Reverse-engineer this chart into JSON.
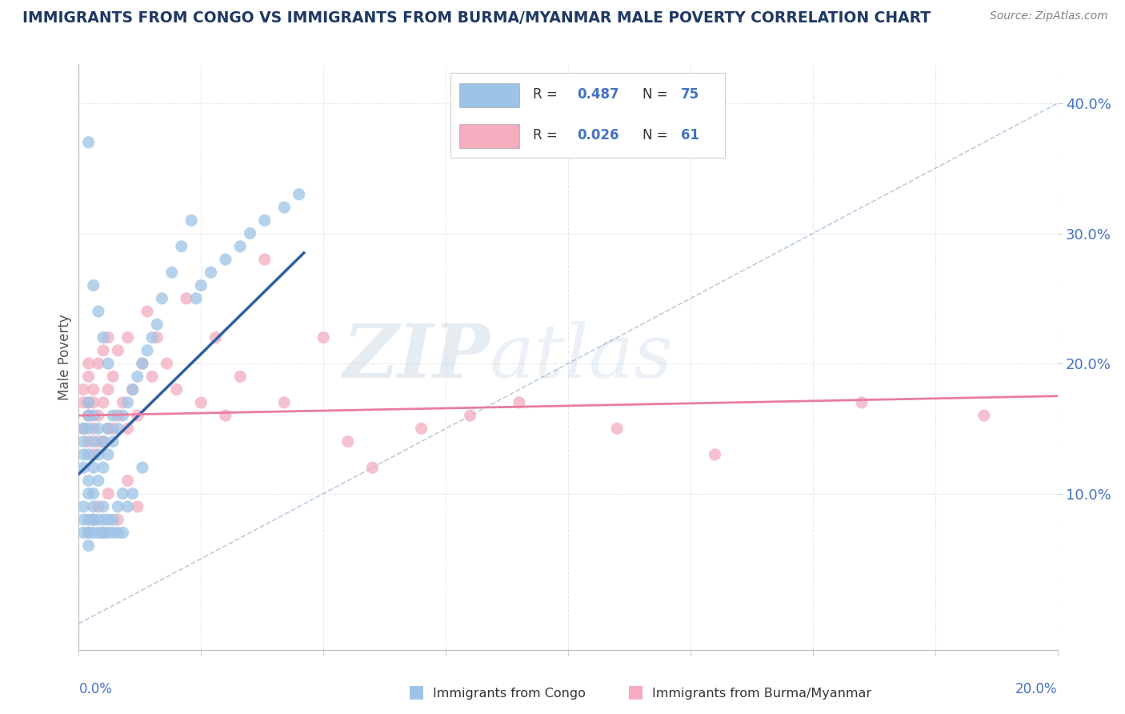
{
  "title": "IMMIGRANTS FROM CONGO VS IMMIGRANTS FROM BURMA/MYANMAR MALE POVERTY CORRELATION CHART",
  "source": "Source: ZipAtlas.com",
  "ylabel": "Male Poverty",
  "xlim": [
    0.0,
    0.2
  ],
  "ylim": [
    -0.02,
    0.43
  ],
  "color_congo": "#9DC3E6",
  "color_burma": "#F4ACBE",
  "color_congo_line": "#2E5FA3",
  "color_burma_line": "#E87DA0",
  "color_diag": "#A0B8D0",
  "watermark_zip": "ZIP",
  "watermark_atlas": "atlas",
  "legend_label1": "Immigrants from Congo",
  "legend_label2": "Immigrants from Burma/Myanmar",
  "congo_x": [
    0.001,
    0.001,
    0.001,
    0.001,
    0.001,
    0.001,
    0.001,
    0.002,
    0.002,
    0.002,
    0.002,
    0.002,
    0.002,
    0.002,
    0.002,
    0.002,
    0.003,
    0.003,
    0.003,
    0.003,
    0.003,
    0.003,
    0.003,
    0.004,
    0.004,
    0.004,
    0.004,
    0.004,
    0.005,
    0.005,
    0.005,
    0.005,
    0.005,
    0.006,
    0.006,
    0.006,
    0.006,
    0.007,
    0.007,
    0.007,
    0.007,
    0.008,
    0.008,
    0.008,
    0.009,
    0.009,
    0.009,
    0.01,
    0.01,
    0.011,
    0.011,
    0.012,
    0.013,
    0.013,
    0.014,
    0.015,
    0.016,
    0.017,
    0.019,
    0.021,
    0.023,
    0.024,
    0.025,
    0.027,
    0.03,
    0.033,
    0.035,
    0.038,
    0.042,
    0.045,
    0.002,
    0.003,
    0.004,
    0.005,
    0.006
  ],
  "congo_y": [
    0.12,
    0.13,
    0.14,
    0.15,
    0.07,
    0.08,
    0.09,
    0.1,
    0.11,
    0.13,
    0.15,
    0.16,
    0.17,
    0.08,
    0.07,
    0.06,
    0.09,
    0.1,
    0.12,
    0.14,
    0.16,
    0.07,
    0.08,
    0.11,
    0.13,
    0.15,
    0.07,
    0.08,
    0.12,
    0.14,
    0.08,
    0.07,
    0.09,
    0.13,
    0.15,
    0.08,
    0.07,
    0.14,
    0.16,
    0.08,
    0.07,
    0.15,
    0.09,
    0.07,
    0.16,
    0.1,
    0.07,
    0.17,
    0.09,
    0.18,
    0.1,
    0.19,
    0.2,
    0.12,
    0.21,
    0.22,
    0.23,
    0.25,
    0.27,
    0.29,
    0.31,
    0.25,
    0.26,
    0.27,
    0.28,
    0.29,
    0.3,
    0.31,
    0.32,
    0.33,
    0.37,
    0.26,
    0.24,
    0.22,
    0.2
  ],
  "burma_x": [
    0.001,
    0.001,
    0.001,
    0.002,
    0.002,
    0.002,
    0.002,
    0.002,
    0.003,
    0.003,
    0.003,
    0.003,
    0.004,
    0.004,
    0.004,
    0.005,
    0.005,
    0.005,
    0.006,
    0.006,
    0.006,
    0.007,
    0.007,
    0.008,
    0.008,
    0.009,
    0.01,
    0.01,
    0.011,
    0.012,
    0.013,
    0.014,
    0.015,
    0.016,
    0.018,
    0.02,
    0.022,
    0.025,
    0.028,
    0.03,
    0.033,
    0.038,
    0.042,
    0.05,
    0.055,
    0.06,
    0.07,
    0.08,
    0.09,
    0.11,
    0.13,
    0.16,
    0.185,
    0.002,
    0.003,
    0.004,
    0.005,
    0.006,
    0.008,
    0.01,
    0.012
  ],
  "burma_y": [
    0.15,
    0.17,
    0.18,
    0.14,
    0.16,
    0.17,
    0.19,
    0.2,
    0.13,
    0.15,
    0.17,
    0.18,
    0.14,
    0.16,
    0.2,
    0.14,
    0.17,
    0.21,
    0.15,
    0.18,
    0.22,
    0.15,
    0.19,
    0.16,
    0.21,
    0.17,
    0.15,
    0.22,
    0.18,
    0.16,
    0.2,
    0.24,
    0.19,
    0.22,
    0.2,
    0.18,
    0.25,
    0.17,
    0.22,
    0.16,
    0.19,
    0.28,
    0.17,
    0.22,
    0.14,
    0.12,
    0.15,
    0.16,
    0.17,
    0.15,
    0.13,
    0.17,
    0.16,
    0.07,
    0.08,
    0.09,
    0.07,
    0.1,
    0.08,
    0.11,
    0.09
  ],
  "congo_line_x": [
    0.0,
    0.046
  ],
  "congo_line_y": [
    0.115,
    0.285
  ],
  "burma_line_x": [
    0.0,
    0.2
  ],
  "burma_line_y": [
    0.16,
    0.175
  ],
  "diag_line_x": [
    0.0,
    0.2
  ],
  "diag_line_y": [
    0.0,
    0.4
  ],
  "ytick_vals": [
    0.1,
    0.2,
    0.3,
    0.4
  ],
  "ytick_labels": [
    "10.0%",
    "20.0%",
    "30.0%",
    "40.0%"
  ],
  "xtick_vals": [
    0.0,
    0.025,
    0.05,
    0.075,
    0.1,
    0.125,
    0.15,
    0.175,
    0.2
  ],
  "legend_r1": "0.487",
  "legend_n1": "75",
  "legend_r2": "0.026",
  "legend_n2": "61",
  "title_color": "#1F3864",
  "source_color": "#808080",
  "axis_label_color": "#555555",
  "tick_color": "#4472C4",
  "grid_color": "#E8E8E8"
}
